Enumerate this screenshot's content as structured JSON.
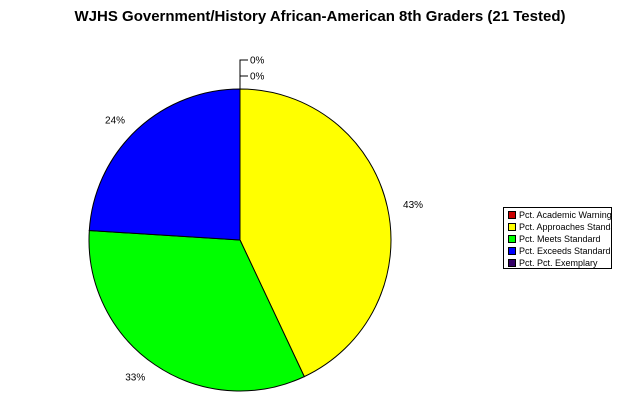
{
  "chart_data": {
    "type": "pie",
    "title": "WJHS Government/History African-American 8th Graders (21 Tested)",
    "categories": [
      "Pct. Academic Warning",
      "Pct. Approaches Standard",
      "Pct. Meets Standard",
      "Pct. Exceeds Standard",
      "Pct. Pct. Exemplary"
    ],
    "values": [
      0,
      43,
      33,
      24,
      0
    ],
    "labels": [
      "0%",
      "43%",
      "33%",
      "24%",
      "0%"
    ],
    "colors": [
      "#cc0000",
      "#ffff00",
      "#00ff00",
      "#0000ff",
      "#330066"
    ],
    "start_angle": "12 o'clock",
    "direction": "clockwise",
    "legend_position": "right"
  }
}
